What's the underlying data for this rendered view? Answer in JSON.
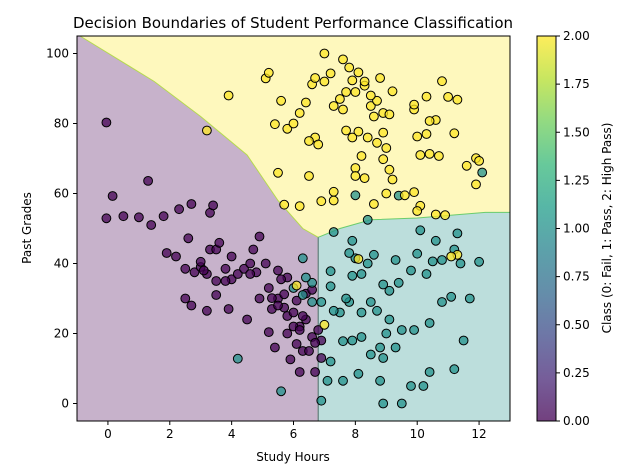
{
  "chart_data": {
    "type": "scatter",
    "title": "Decision Boundaries of Student Performance Classification",
    "xlabel": "Study Hours",
    "ylabel": "Past Grades",
    "xlim": [
      -1,
      13
    ],
    "ylim": [
      -5,
      105
    ],
    "xticks": [
      "0",
      "2",
      "4",
      "6",
      "8",
      "10",
      "12"
    ],
    "yticks": [
      "0",
      "20",
      "40",
      "60",
      "80",
      "100"
    ],
    "grid": false,
    "colorbar": {
      "label": "Class (0: Fail, 1: Pass, 2: High Pass)",
      "range": [
        0,
        2
      ],
      "ticks": [
        "0.00",
        "0.25",
        "0.50",
        "0.75",
        "1.00",
        "1.25",
        "1.50",
        "1.75",
        "2.00"
      ],
      "colormap": "viridis"
    },
    "class_colors": {
      "fail": "#440154",
      "pass": "#21918c",
      "high_pass": "#fde725"
    },
    "decision_regions": {
      "fail_region": [
        [
          -1,
          105
        ],
        [
          -0.9,
          105
        ],
        [
          1.5,
          92
        ],
        [
          3,
          82
        ],
        [
          4.5,
          71
        ],
        [
          5.5,
          58
        ],
        [
          6.3,
          50
        ],
        [
          6.8,
          47.5
        ],
        [
          6.8,
          -5
        ],
        [
          -1,
          -5
        ]
      ],
      "high_pass_region": [
        [
          -0.9,
          105
        ],
        [
          13,
          105
        ],
        [
          13,
          54.6
        ],
        [
          12.2,
          54.6
        ],
        [
          10,
          53
        ],
        [
          8.5,
          52.5
        ],
        [
          7.5,
          50
        ],
        [
          6.8,
          47.5
        ],
        [
          6.3,
          50
        ],
        [
          5.5,
          58
        ],
        [
          4.5,
          71
        ],
        [
          3,
          82
        ],
        [
          1.5,
          92
        ]
      ],
      "pass_region": [
        [
          6.8,
          47.5
        ],
        [
          7.5,
          50
        ],
        [
          8.5,
          52.5
        ],
        [
          10,
          53
        ],
        [
          12.2,
          54.6
        ],
        [
          13,
          54.6
        ],
        [
          13,
          -5
        ],
        [
          6.8,
          -5
        ]
      ]
    },
    "series": [
      {
        "class": 0,
        "points": [
          [
            -0.05,
            80.3
          ],
          [
            0.15,
            59.3
          ],
          [
            -0.05,
            52.9
          ],
          [
            0.5,
            53.5
          ],
          [
            1.0,
            53.2
          ],
          [
            1.3,
            63.6
          ],
          [
            1.4,
            51
          ],
          [
            1.8,
            53.5
          ],
          [
            2.3,
            55.5
          ],
          [
            2.7,
            57
          ],
          [
            3.3,
            54.5
          ],
          [
            3.4,
            56.6
          ],
          [
            1.9,
            43
          ],
          [
            2.2,
            42
          ],
          [
            2.6,
            47.2
          ],
          [
            2.5,
            38.5
          ],
          [
            2.8,
            37.5
          ],
          [
            3.0,
            39
          ],
          [
            3.3,
            44
          ],
          [
            3.5,
            44
          ],
          [
            3.6,
            45.9
          ],
          [
            3.2,
            37
          ],
          [
            3.5,
            35
          ],
          [
            3.8,
            38.5
          ],
          [
            4.0,
            35.5
          ],
          [
            4.2,
            37
          ],
          [
            4.0,
            42
          ],
          [
            4.4,
            38.5
          ],
          [
            4.6,
            40
          ],
          [
            4.8,
            37.5
          ],
          [
            5.1,
            40
          ],
          [
            4.7,
            44
          ],
          [
            4.9,
            47.7
          ],
          [
            3.2,
            26.5
          ],
          [
            3.5,
            31
          ],
          [
            3.9,
            27
          ],
          [
            4.5,
            24
          ],
          [
            4.9,
            30
          ],
          [
            5.2,
            33
          ],
          [
            5.5,
            30
          ],
          [
            5.3,
            27
          ],
          [
            5.8,
            25
          ],
          [
            6.0,
            26
          ],
          [
            6.2,
            22
          ],
          [
            6.4,
            24
          ],
          [
            6.6,
            19
          ],
          [
            6.8,
            21
          ],
          [
            5.8,
            20
          ],
          [
            6.1,
            17
          ],
          [
            6.3,
            15
          ],
          [
            6.5,
            15
          ],
          [
            6.9,
            18
          ],
          [
            5.2,
            20.4
          ],
          [
            5.4,
            16
          ],
          [
            5.9,
            12.6
          ],
          [
            6.2,
            9
          ],
          [
            6.7,
            9
          ],
          [
            2.5,
            30
          ],
          [
            2.7,
            28
          ],
          [
            3.1,
            38
          ],
          [
            3.0,
            40.5
          ],
          [
            4.6,
            37
          ],
          [
            5.5,
            38
          ],
          [
            5.8,
            36
          ],
          [
            5.6,
            35.5
          ],
          [
            5.7,
            31.2
          ],
          [
            6.1,
            29.4
          ],
          [
            6.4,
            31.4
          ],
          [
            6.6,
            32.5
          ],
          [
            5.7,
            27.4
          ],
          [
            6.3,
            25
          ],
          [
            6.7,
            17.3
          ],
          [
            6.9,
            13
          ],
          [
            3.8,
            35
          ],
          [
            5.3,
            30.1
          ],
          [
            5.5,
            28
          ],
          [
            6.0,
            22
          ],
          [
            6.2,
            21
          ]
        ]
      },
      {
        "class": 1,
        "points": [
          [
            4.2,
            12.8
          ],
          [
            5.6,
            3.5
          ],
          [
            6.9,
            0.8
          ],
          [
            7.1,
            6.5
          ],
          [
            7.6,
            6.5
          ],
          [
            8.1,
            8.5
          ],
          [
            8.8,
            6.5
          ],
          [
            8.9,
            0
          ],
          [
            9.5,
            0
          ],
          [
            9.8,
            5
          ],
          [
            10.2,
            5
          ],
          [
            10.4,
            9
          ],
          [
            11.2,
            9.8
          ],
          [
            11.5,
            18
          ],
          [
            7.2,
            12
          ],
          [
            7.6,
            17.8
          ],
          [
            7.9,
            18
          ],
          [
            8.2,
            19
          ],
          [
            8.5,
            14
          ],
          [
            8.8,
            16
          ],
          [
            9.0,
            20
          ],
          [
            9.5,
            21
          ],
          [
            9.9,
            21
          ],
          [
            10.4,
            23
          ],
          [
            10.8,
            29
          ],
          [
            11.1,
            30.5
          ],
          [
            11.7,
            30
          ],
          [
            12.0,
            40.5
          ],
          [
            11.4,
            40
          ],
          [
            11.2,
            44
          ],
          [
            10.8,
            41
          ],
          [
            10.3,
            37
          ],
          [
            9.8,
            38
          ],
          [
            9.4,
            34.5
          ],
          [
            9.1,
            32.2
          ],
          [
            8.9,
            34
          ],
          [
            8.7,
            26.5
          ],
          [
            8.5,
            29
          ],
          [
            8.2,
            26
          ],
          [
            7.8,
            29
          ],
          [
            7.5,
            26
          ],
          [
            7.3,
            26.5
          ],
          [
            7.2,
            33.5
          ],
          [
            7.2,
            37.8
          ],
          [
            7.7,
            30
          ],
          [
            7.9,
            36.5
          ],
          [
            8.2,
            37
          ],
          [
            8.4,
            40
          ],
          [
            8.6,
            42.5
          ],
          [
            8.0,
            41.5
          ],
          [
            7.9,
            46.5
          ],
          [
            7.8,
            43
          ],
          [
            7.3,
            49
          ],
          [
            6.9,
            29
          ],
          [
            6.6,
            34.5
          ],
          [
            6.3,
            41.5
          ],
          [
            9.3,
            41
          ],
          [
            10.0,
            42.8
          ],
          [
            10.5,
            40.6
          ],
          [
            10.6,
            46.5
          ],
          [
            11.3,
            48.6
          ],
          [
            12.1,
            66
          ],
          [
            9.4,
            59.4
          ],
          [
            8.4,
            52.5
          ],
          [
            8.0,
            59.5
          ],
          [
            10.1,
            49.5
          ],
          [
            9.1,
            24
          ],
          [
            9.3,
            16
          ],
          [
            8.9,
            13
          ],
          [
            6.4,
            36
          ],
          [
            6.6,
            29
          ],
          [
            6.0,
            33
          ],
          [
            6.3,
            31
          ]
        ]
      },
      {
        "class": 2,
        "points": [
          [
            3.9,
            88
          ],
          [
            5.1,
            92.9
          ],
          [
            5.2,
            94.5
          ],
          [
            5.6,
            86.5
          ],
          [
            5.8,
            78.5
          ],
          [
            6.0,
            80
          ],
          [
            6.2,
            83
          ],
          [
            6.4,
            86
          ],
          [
            6.6,
            91.2
          ],
          [
            6.7,
            93
          ],
          [
            6.7,
            76
          ],
          [
            6.5,
            75
          ],
          [
            6.8,
            74
          ],
          [
            7.0,
            92
          ],
          [
            7.2,
            94.3
          ],
          [
            7.0,
            100
          ],
          [
            7.3,
            85
          ],
          [
            7.6,
            84
          ],
          [
            7.5,
            87
          ],
          [
            7.7,
            89
          ],
          [
            7.9,
            92.3
          ],
          [
            8.1,
            94.6
          ],
          [
            8.0,
            89
          ],
          [
            8.3,
            90.8
          ],
          [
            8.5,
            85
          ],
          [
            8.7,
            86.5
          ],
          [
            8.6,
            82
          ],
          [
            8.9,
            83
          ],
          [
            9.1,
            82.6
          ],
          [
            8.9,
            77.4
          ],
          [
            8.7,
            74.5
          ],
          [
            8.4,
            76
          ],
          [
            8.1,
            77.7
          ],
          [
            7.9,
            76
          ],
          [
            7.7,
            78
          ],
          [
            7.6,
            98.3
          ],
          [
            7.8,
            96
          ],
          [
            8.3,
            92
          ],
          [
            8.5,
            88
          ],
          [
            8.8,
            93
          ],
          [
            9.2,
            89.2
          ],
          [
            9.9,
            84
          ],
          [
            9.9,
            85.4
          ],
          [
            10.0,
            76.3
          ],
          [
            10.3,
            77
          ],
          [
            10.3,
            87.7
          ],
          [
            10.6,
            81
          ],
          [
            10.8,
            92.1
          ],
          [
            11.0,
            87.6
          ],
          [
            11.3,
            86.8
          ],
          [
            11.2,
            77.2
          ],
          [
            11.6,
            67.9
          ],
          [
            11.9,
            70.1
          ],
          [
            12.0,
            69.3
          ],
          [
            11.9,
            62.6
          ],
          [
            10.4,
            80.7
          ],
          [
            10.1,
            71
          ],
          [
            10.4,
            71.3
          ],
          [
            10.7,
            70.7
          ],
          [
            9.9,
            60.4
          ],
          [
            10.1,
            56.5
          ],
          [
            9.6,
            59.5
          ],
          [
            9.2,
            64
          ],
          [
            9.1,
            66.8
          ],
          [
            8.9,
            69.8
          ],
          [
            9.0,
            73
          ],
          [
            8.2,
            70.7
          ],
          [
            8.0,
            67.3
          ],
          [
            8.0,
            65
          ],
          [
            8.3,
            64.4
          ],
          [
            7.3,
            60.5
          ],
          [
            7.3,
            58
          ],
          [
            6.9,
            57.8
          ],
          [
            6.2,
            56.4
          ],
          [
            6.5,
            65
          ],
          [
            5.5,
            65.9
          ],
          [
            5.4,
            79.8
          ],
          [
            3.2,
            78
          ],
          [
            8.6,
            57
          ],
          [
            9.0,
            60
          ],
          [
            10.0,
            55
          ],
          [
            10.9,
            53.8
          ],
          [
            11.3,
            42.5
          ],
          [
            11.1,
            42
          ],
          [
            10.6,
            54
          ],
          [
            5.7,
            56.8
          ],
          [
            8.1,
            41.3
          ],
          [
            7.0,
            22.5
          ],
          [
            6.1,
            33.7
          ]
        ]
      }
    ]
  }
}
